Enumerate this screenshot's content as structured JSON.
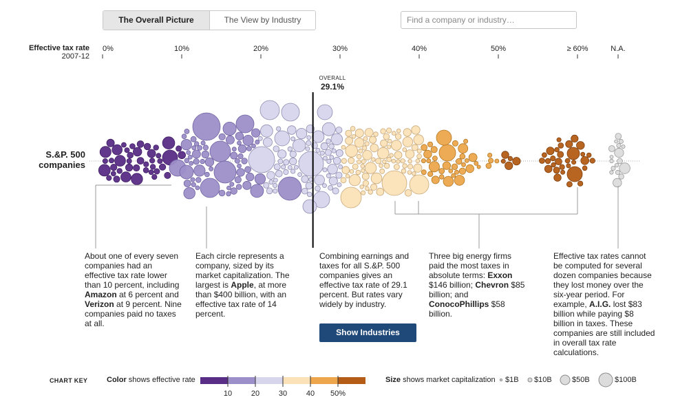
{
  "tabs": {
    "overall": "The Overall Picture",
    "industry": "The View by Industry"
  },
  "search": {
    "placeholder": "Find a company or industry…"
  },
  "axis": {
    "title_line1": "Effective tax rate",
    "title_line2": "2007-12",
    "ticks": [
      {
        "label": "0%",
        "value": 0
      },
      {
        "label": "10%",
        "value": 10
      },
      {
        "label": "20%",
        "value": 20
      },
      {
        "label": "30%",
        "value": 30
      },
      {
        "label": "40%",
        "value": 40
      },
      {
        "label": "50%",
        "value": 50
      },
      {
        "label": "≥ 60%",
        "value": 60
      },
      {
        "label": "N.A.",
        "value": null
      }
    ]
  },
  "row_label_1": "S.&P. 500",
  "row_label_2": "companies",
  "overall": {
    "label": "OVERALL",
    "value_label": "29.1%",
    "rate": 29.1
  },
  "notes": {
    "n1_a": "About one of every seven companies had an effective tax rate lower than 10 percent, including ",
    "n1_b": "Amazon",
    "n1_c": " at 6 percent and ",
    "n1_d": "Verizon",
    "n1_e": " at 9 percent. Nine companies paid no taxes at all.",
    "n2_a": "Each circle represents a company, sized by its market capitalization. The largest is ",
    "n2_b": "Apple",
    "n2_c": ", at more than $400 billion, with an effective tax rate of 14 percent.",
    "n3": "Combining earnings and taxes for all S.&P. 500 companies gives an effective tax rate of 29.1 percent. But rates vary widely by industry.",
    "n4_a": "Three big energy firms paid the most taxes in absolute terms: ",
    "n4_b": "Exxon",
    "n4_c": " $146 billion; ",
    "n4_d": "Chevron",
    "n4_e": " $85 billion; and ",
    "n4_f": "ConocoPhillips",
    "n4_g": " $58 billion.",
    "n5_a": "Effective tax rates cannot be computed for several dozen companies because they lost money over the six-year period. For example, ",
    "n5_b": "A.I.G.",
    "n5_c": " lost $83 billion while paying $8 billion in taxes. These companies are still included in overall tax rate calculations."
  },
  "button": {
    "label": "Show Industries"
  },
  "key": {
    "title": "CHART KEY",
    "color_bold": "Color",
    "color_text": " shows effective rate",
    "color_scale": [
      "#5a2d86",
      "#9d8fc9",
      "#d6d5ec",
      "#fbe1b8",
      "#eda64c",
      "#b55d16"
    ],
    "color_ticks": [
      "10",
      "20",
      "30",
      "40",
      "50%"
    ],
    "size_bold": "Size",
    "size_text": " shows market capitalization",
    "sizes": [
      "$1B",
      "$10B",
      "$50B",
      "$100B"
    ]
  },
  "chart_data": {
    "type": "scatter",
    "title": "",
    "xlabel": "Effective tax rate 2007-12",
    "ylabel": "",
    "series": [
      {
        "name": "S.&P. 500 companies",
        "values": []
      }
    ],
    "overall_rate": 29.1,
    "xlim": [
      0,
      60
    ],
    "categories": [
      "0%",
      "10%",
      "20%",
      "30%",
      "40%",
      "50%",
      "≥ 60%",
      "N.A."
    ],
    "highlighted": [
      {
        "name": "Apple",
        "rate": 14,
        "market_cap_billion": 400
      },
      {
        "name": "Amazon",
        "rate": 6
      },
      {
        "name": "Verizon",
        "rate": 9
      },
      {
        "name": "Exxon",
        "taxes_paid_billion": 146
      },
      {
        "name": "Chevron",
        "taxes_paid_billion": 85
      },
      {
        "name": "ConocoPhillips",
        "taxes_paid_billion": 58
      },
      {
        "name": "A.I.G.",
        "loss_billion": 83,
        "taxes_paid_billion": 8
      }
    ]
  }
}
